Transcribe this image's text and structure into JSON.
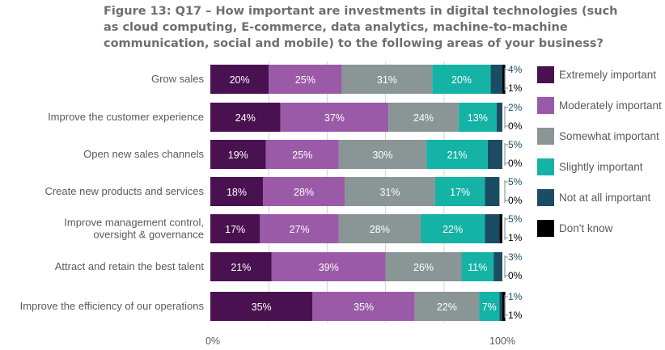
{
  "title": "Figure 13: Q17 – How important are investments in digital technologies (such as cloud computing, E-commerce, data analytics, machine-to-machine communication, social and mobile) to the following areas of your business?",
  "chart_data": {
    "type": "bar",
    "orientation": "horizontal",
    "stacked": true,
    "categories": [
      "Grow sales",
      "Improve the customer experience",
      "Open new sales channels",
      "Create new products and services",
      "Improve management control,\noversight & governance",
      "Attract and retain the best talent",
      "Improve the efficiency of our operations"
    ],
    "series": [
      {
        "name": "Extremely important",
        "color": "#4a1150",
        "values": [
          20,
          24,
          19,
          18,
          17,
          21,
          35
        ]
      },
      {
        "name": "Moderately important",
        "color": "#9b5aa8",
        "values": [
          25,
          37,
          25,
          28,
          27,
          39,
          35
        ]
      },
      {
        "name": "Somewhat important",
        "color": "#8a9595",
        "values": [
          31,
          24,
          30,
          31,
          28,
          26,
          22
        ]
      },
      {
        "name": "Slightly important",
        "color": "#14b3a5",
        "values": [
          20,
          13,
          21,
          17,
          22,
          11,
          7
        ]
      },
      {
        "name": "Not at all important",
        "color": "#1a4d63",
        "values": [
          4,
          2,
          5,
          5,
          5,
          3,
          1
        ]
      },
      {
        "name": "Don't know",
        "color": "#000000",
        "values": [
          1,
          0,
          0,
          0,
          1,
          0,
          1
        ]
      }
    ],
    "xlim": [
      0,
      100
    ],
    "x_tick_labels": [
      "0%",
      "100%"
    ],
    "value_format": "{v}%",
    "legend_position": "right"
  }
}
